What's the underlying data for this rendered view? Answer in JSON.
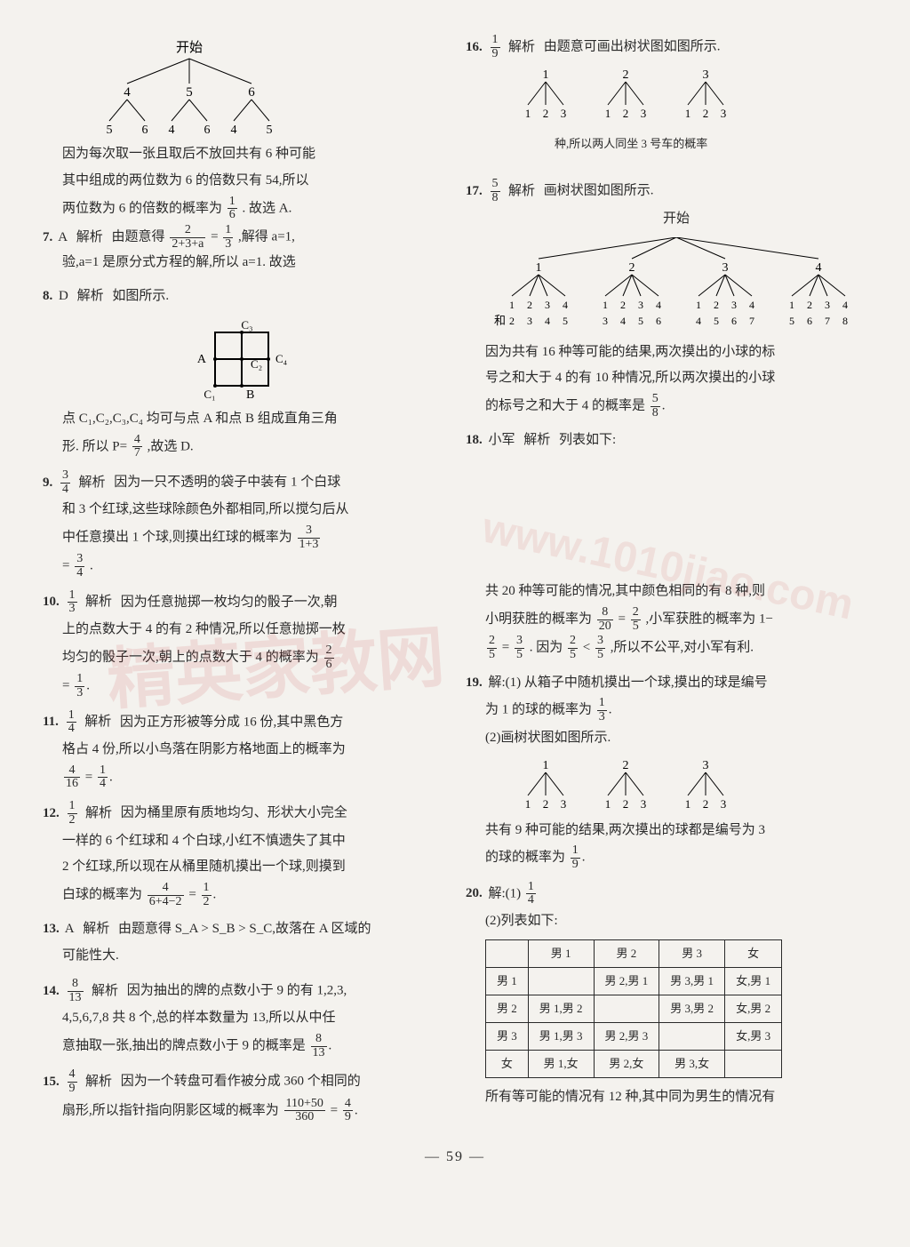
{
  "left": {
    "tree1": {
      "root": "开始",
      "mid": [
        "4",
        "5",
        "6"
      ],
      "leaves": [
        "5",
        "6",
        "4",
        "6",
        "4",
        "5"
      ]
    },
    "q6p1": "因为每次取一张且取后不放回共有 6 种可能",
    "q6p2": "其中组成的两位数为 6 的倍数只有 54,所以",
    "q6p3": "两位数为 6 的倍数的概率为",
    "q6frac": {
      "n": "1",
      "d": "6"
    },
    "q6end": ". 故选 A.",
    "q7num": "7.",
    "q7ans": "A",
    "q7lab": "解析",
    "q7text1": "由题意得",
    "q7f1": {
      "n": "2",
      "d": "2+3+a"
    },
    "q7eq": "=",
    "q7f2": {
      "n": "1",
      "d": "3"
    },
    "q7text2": ",解得 a=1,",
    "q7line2": "验,a=1 是原分式方程的解,所以 a=1. 故选",
    "q8num": "8.",
    "q8ans": "D",
    "q8lab": "解析",
    "q8text": "如图所示.",
    "sq": {
      "A": "A",
      "B": "B",
      "C1": "C₁",
      "C2": "C₂",
      "C3": "C₃",
      "C4": "C₄"
    },
    "q8p1": "点 C₁,C₂,C₃,C₄ 均可与点 A 和点 B 组成直角三角",
    "q8p2": "形. 所以 P=",
    "q8f": {
      "n": "4",
      "d": "7"
    },
    "q8end": ",故选 D.",
    "q9num": "9.",
    "q9ansf": {
      "n": "3",
      "d": "4"
    },
    "q9lab": "解析",
    "q9t1": "因为一只不透明的袋子中装有 1 个白球",
    "q9t2": "和 3 个红球,这些球除颜色外都相同,所以搅匀后从",
    "q9t3": "中任意摸出 1 个球,则摸出红球的概率为",
    "q9f1": {
      "n": "3",
      "d": "1+3"
    },
    "q9eq": "=",
    "q9f2": {
      "n": "3",
      "d": "4"
    },
    "q9end": ".",
    "q10num": "10.",
    "q10ansf": {
      "n": "1",
      "d": "3"
    },
    "q10lab": "解析",
    "q10t1": "因为任意抛掷一枚均匀的骰子一次,朝",
    "q10t2": "上的点数大于 4 的有 2 种情况,所以任意抛掷一枚",
    "q10t3": "均匀的骰子一次,朝上的点数大于 4 的概率为",
    "q10f1": {
      "n": "2",
      "d": "6"
    },
    "q10f2": {
      "n": "1",
      "d": "3"
    },
    "q11num": "11.",
    "q11ansf": {
      "n": "1",
      "d": "4"
    },
    "q11lab": "解析",
    "q11t1": "因为正方形被等分成 16 份,其中黑色方",
    "q11t2": "格占 4 份,所以小鸟落在阴影方格地面上的概率为",
    "q11f1": {
      "n": "4",
      "d": "16"
    },
    "q11f2": {
      "n": "1",
      "d": "4"
    },
    "q12num": "12.",
    "q12ansf": {
      "n": "1",
      "d": "2"
    },
    "q12lab": "解析",
    "q12t1": "因为桶里原有质地均匀、形状大小完全",
    "q12t2": "一样的 6 个红球和 4 个白球,小红不慎遗失了其中",
    "q12t3": "2 个红球,所以现在从桶里随机摸出一个球,则摸到",
    "q12t4": "白球的概率为",
    "q12f1": {
      "n": "4",
      "d": "6+4−2"
    },
    "q12f2": {
      "n": "1",
      "d": "2"
    },
    "q13num": "13.",
    "q13ans": "A",
    "q13lab": "解析",
    "q13t1": "由题意得 S_A > S_B > S_C,故落在 A 区域的",
    "q13t2": "可能性大.",
    "q14num": "14.",
    "q14ansf": {
      "n": "8",
      "d": "13"
    },
    "q14lab": "解析",
    "q14t1": "因为抽出的牌的点数小于 9 的有 1,2,3,",
    "q14t2": "4,5,6,7,8 共 8 个,总的样本数量为 13,所以从中任",
    "q14t3": "意抽取一张,抽出的牌点数小于 9 的概率是",
    "q14f1": {
      "n": "8",
      "d": "13"
    },
    "q15num": "15.",
    "q15ansf": {
      "n": "4",
      "d": "9"
    },
    "q15lab": "解析",
    "q15t1": "因为一个转盘可看作被分成 360 个相同的",
    "q15t2": "扇形,所以指针指向阴影区域的概率为",
    "q15f1": {
      "n": "110+50",
      "d": "360"
    },
    "q15f2": {
      "n": "4",
      "d": "9"
    }
  },
  "right": {
    "q16num": "16.",
    "q16ansf": {
      "n": "1",
      "d": "9"
    },
    "q16lab": "解析",
    "q16t1": "由题意可画出树状图如图所示.",
    "tree16": {
      "tops": [
        "1",
        "2",
        "3"
      ],
      "leaves": [
        "1",
        "2",
        "3",
        "1",
        "2",
        "3",
        "1",
        "2",
        "3"
      ]
    },
    "q16t2": "种,所以两人同坐 3 号车的概率",
    "q17num": "17.",
    "q17ansf": {
      "n": "5",
      "d": "8"
    },
    "q17lab": "解析",
    "q17t1": "画树状图如图所示.",
    "q17root": "开始",
    "tree17": {
      "tops": [
        "1",
        "2",
        "3",
        "4"
      ],
      "row1": [
        "1",
        "2",
        "3",
        "4",
        "1",
        "2",
        "3",
        "4",
        "1",
        "2",
        "3",
        "4",
        "1",
        "2",
        "3",
        "4"
      ],
      "sumlab": "和",
      "row2": [
        "2",
        "3",
        "4",
        "5",
        "3",
        "4",
        "5",
        "6",
        "4",
        "5",
        "6",
        "7",
        "5",
        "6",
        "7",
        "8"
      ]
    },
    "q17t2": "因为共有 16 种等可能的结果,两次摸出的小球的标",
    "q17t3": "号之和大于 4 的有 10 种情况,所以两次摸出的小球",
    "q17t4": "的标号之和大于 4 的概率是",
    "q17f": {
      "n": "5",
      "d": "8"
    },
    "q18num": "18.",
    "q18ans": "小军",
    "q18lab": "解析",
    "q18t1": "列表如下:",
    "q18t2": "共 20 种等可能的情况,其中颜色相同的有 8 种,则",
    "q18t3": "小明获胜的概率为",
    "q18f1": {
      "n": "8",
      "d": "20"
    },
    "q18f2": {
      "n": "2",
      "d": "5"
    },
    "q18t4": ",小军获胜的概率为 1−",
    "q18f3": {
      "n": "2",
      "d": "5"
    },
    "q18f4": {
      "n": "3",
      "d": "5"
    },
    "q18t5": ". 因为",
    "q18lt": "<",
    "q18t6": ",所以不公平,对小军有利.",
    "q19num": "19.",
    "q19t0": "解:(1) 从箱子中随机摸出一个球,摸出的球是编号",
    "q19t1": "为 1 的球的概率为",
    "q19f1": {
      "n": "1",
      "d": "3"
    },
    "q19t2": "(2)画树状图如图所示.",
    "tree19": {
      "tops": [
        "1",
        "2",
        "3"
      ],
      "leaves": [
        "1",
        "2",
        "3",
        "1",
        "2",
        "3",
        "1",
        "2",
        "3"
      ]
    },
    "q19t3": "共有 9 种可能的结果,两次摸出的球都是编号为 3",
    "q19t4": "的球的概率为",
    "q19f2": {
      "n": "1",
      "d": "9"
    },
    "q20num": "20.",
    "q20t0": "解:(1)",
    "q20f0": {
      "n": "1",
      "d": "4"
    },
    "q20t1": "(2)列表如下:",
    "table20": {
      "cols": [
        "",
        "男 1",
        "男 2",
        "男 3",
        "女"
      ],
      "rows": [
        [
          "男 1",
          "",
          "男 2,男 1",
          "男 3,男 1",
          "女,男 1"
        ],
        [
          "男 2",
          "男 1,男 2",
          "",
          "男 3,男 2",
          "女,男 2"
        ],
        [
          "男 3",
          "男 1,男 3",
          "男 2,男 3",
          "",
          "女,男 3"
        ],
        [
          "女",
          "男 1,女",
          "男 2,女",
          "男 3,女",
          ""
        ]
      ]
    },
    "q20t2": "所有等可能的情况有 12 种,其中同为男生的情况有"
  },
  "footer": "—  59  —",
  "watermark1": "精英家教网",
  "watermark2": "www.1010jiao.com"
}
